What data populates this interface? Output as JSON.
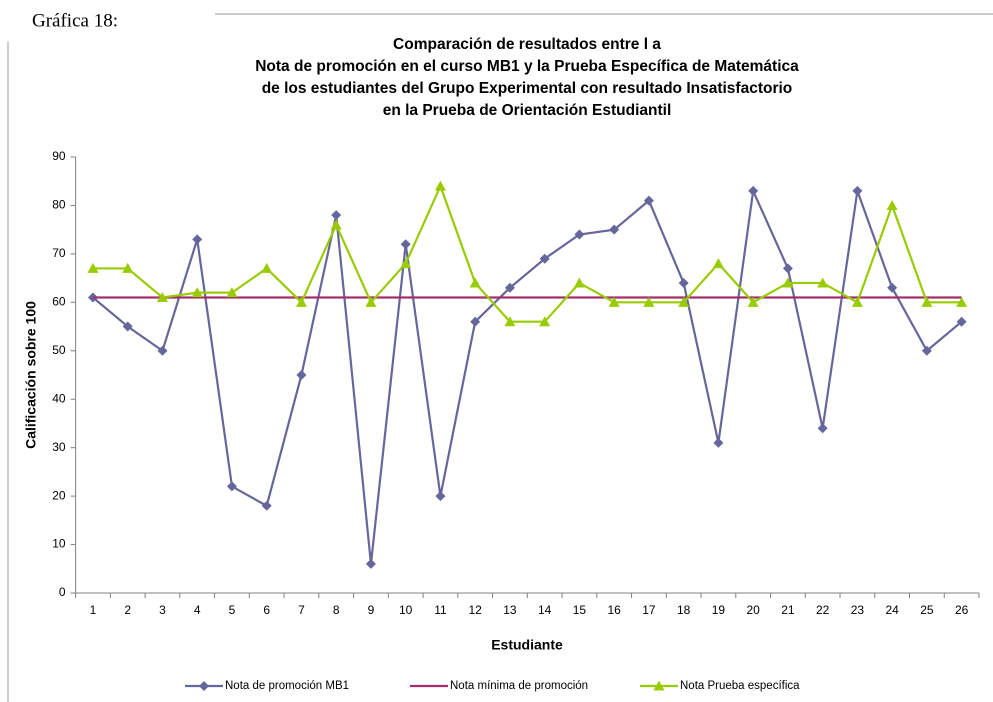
{
  "caption": "Gráfica 18:",
  "chart_data": {
    "type": "line",
    "title": [
      "Comparación de resultados entre l a",
      "Nota de promoción en el curso MB1 y la Prueba Específica de Matemática",
      "de los estudiantes del Grupo Experimental  con resultado  Insatisfactorio",
      "en la Prueba de Orientación Estudiantil"
    ],
    "x_label": "Estudiante",
    "y_label": "Calificación sobre 100",
    "categories": [
      "1",
      "2",
      "3",
      "4",
      "5",
      "6",
      "7",
      "8",
      "9",
      "10",
      "11",
      "12",
      "13",
      "14",
      "15",
      "16",
      "17",
      "18",
      "19",
      "20",
      "21",
      "22",
      "23",
      "24",
      "25",
      "26"
    ],
    "ylim": [
      0,
      90
    ],
    "yticks": [
      0,
      10,
      20,
      30,
      40,
      50,
      60,
      70,
      80,
      90
    ],
    "grid": false,
    "legend": "bottom",
    "series": [
      {
        "name": "Nota de promoción MB1",
        "color": "#66669c",
        "marker": "diamond",
        "values": [
          61,
          55,
          50,
          73,
          22,
          18,
          45,
          78,
          6,
          72,
          20,
          56,
          63,
          69,
          74,
          75,
          81,
          64,
          31,
          83,
          67,
          34,
          83,
          63,
          50,
          56
        ]
      },
      {
        "name": "Nota mínima de promoción",
        "color": "#a3306c",
        "marker": "none",
        "values": [
          61,
          61,
          61,
          61,
          61,
          61,
          61,
          61,
          61,
          61,
          61,
          61,
          61,
          61,
          61,
          61,
          61,
          61,
          61,
          61,
          61,
          61,
          61,
          61,
          61,
          61
        ]
      },
      {
        "name": "Nota Prueba específica",
        "color": "#99cc00",
        "marker": "triangle",
        "values": [
          67,
          67,
          61,
          62,
          62,
          67,
          60,
          76,
          60,
          68,
          84,
          64,
          56,
          56,
          64,
          60,
          60,
          60,
          68,
          60,
          64,
          64,
          60,
          80,
          60,
          60
        ]
      }
    ]
  }
}
